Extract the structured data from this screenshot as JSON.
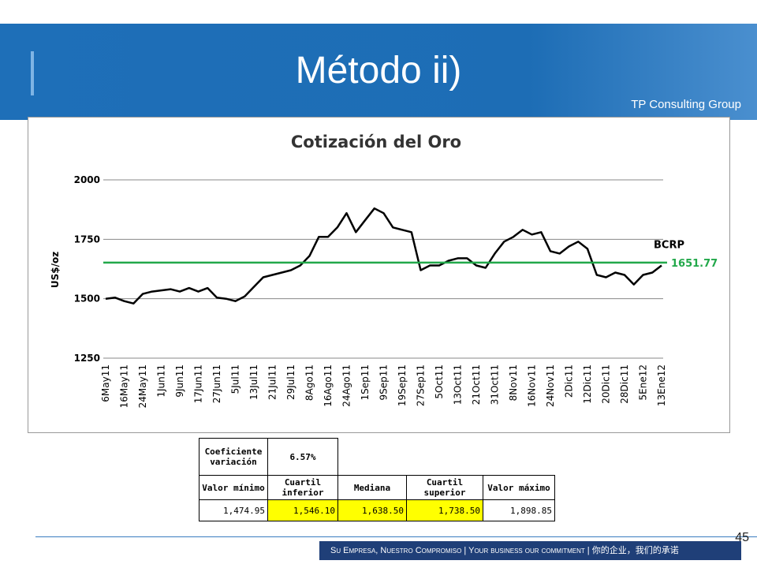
{
  "header": {
    "title": "Método ii)",
    "logo": "TP Consulting Group"
  },
  "chart_data": {
    "type": "line",
    "title": "Cotización del Oro",
    "y_label": "US$/oz",
    "categories": [
      "6May11",
      null,
      "16May11",
      null,
      "24May11",
      null,
      "1Jun11",
      null,
      "9Jun11",
      null,
      "17Jun11",
      null,
      "27Jun11",
      null,
      "5Jul11",
      null,
      "13Jul11",
      null,
      "21Jul11",
      null,
      "29Jul11",
      null,
      "8Ago11",
      null,
      "16Ago11",
      null,
      "24Ago11",
      null,
      "1Sep11",
      null,
      "9Sep11",
      null,
      "19Sep11",
      null,
      "27Sep11",
      null,
      "5Oct11",
      null,
      "13Oct11",
      null,
      "21Oct11",
      null,
      "31Oct11",
      null,
      "8Nov11",
      null,
      "16Nov11",
      null,
      "24Nov11",
      null,
      "2Dic11",
      null,
      "12Dic11",
      null,
      "20Dic11",
      null,
      "28Dic11",
      null,
      "5Ene12",
      null,
      "13Ene12"
    ],
    "series": [
      {
        "name": "BCRP",
        "color": "#000000",
        "values": [
          1500,
          1505,
          1490,
          1480,
          1520,
          1530,
          1535,
          1540,
          1530,
          1545,
          1530,
          1545,
          1505,
          1500,
          1490,
          1510,
          1550,
          1590,
          1600,
          1610,
          1620,
          1640,
          1680,
          1760,
          1760,
          1800,
          1860,
          1780,
          1830,
          1880,
          1860,
          1800,
          1790,
          1780,
          1620,
          1640,
          1640,
          1660,
          1670,
          1670,
          1640,
          1630,
          1690,
          1740,
          1760,
          1790,
          1770,
          1780,
          1700,
          1690,
          1720,
          1740,
          1710,
          1600,
          1590,
          1610,
          1600,
          1560,
          1600,
          1610,
          1640
        ]
      }
    ],
    "reference_line": {
      "value": 1651.77,
      "label": "1651.77",
      "color": "#22a84a"
    },
    "ylim": [
      1250,
      2000
    ],
    "yticks": [
      1250,
      1500,
      1750,
      2000
    ],
    "grid": true
  },
  "table": {
    "cv_label": "Coeficiente variación",
    "cv_value": "6.57%",
    "headers": [
      "Valor mínimo",
      "Cuartil inferior",
      "Mediana",
      "Cuartil superior",
      "Valor máximo"
    ],
    "values": [
      "1,474.95",
      "1,546.10",
      "1,638.50",
      "1,738.50",
      "1,898.85"
    ]
  },
  "footer": {
    "slogan": "Su Empresa, Nuestro Compromiso | Your business our commitment | 你的企业，我们的承诺",
    "page_number": "45"
  }
}
